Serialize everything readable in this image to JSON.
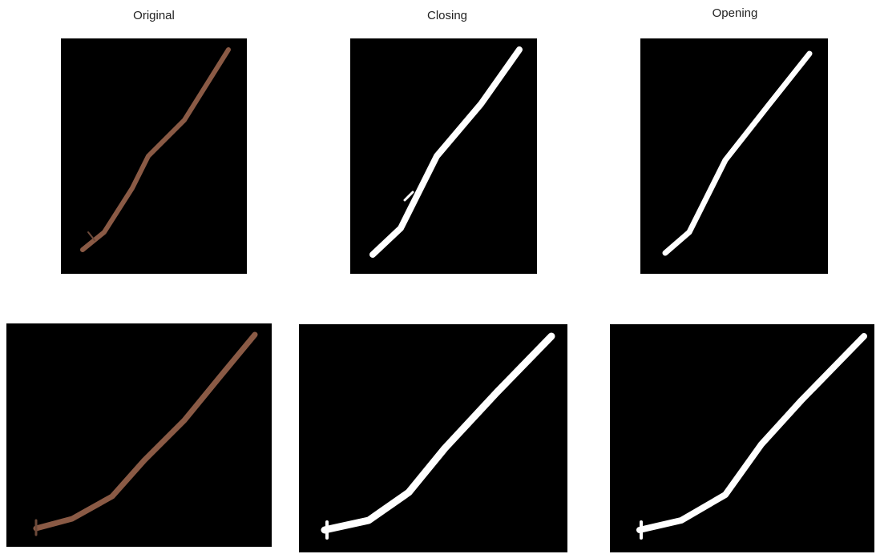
{
  "titles": [
    "Original",
    "Closing",
    "Opening"
  ]
}
